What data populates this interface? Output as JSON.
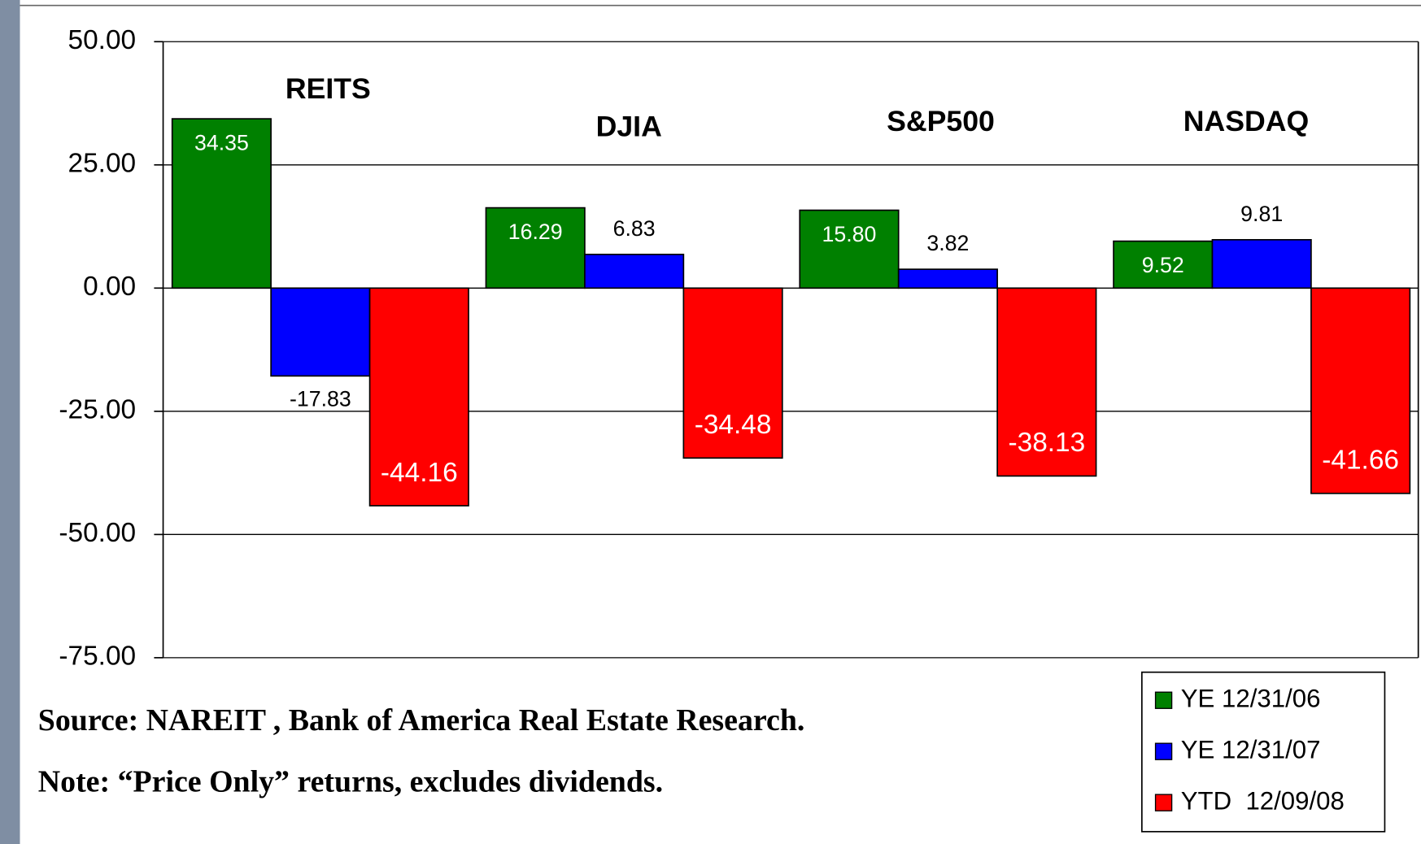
{
  "chart_data": {
    "type": "bar",
    "categories": [
      "REITS",
      "DJIA",
      "S&P500",
      "NASDAQ"
    ],
    "series": [
      {
        "name": "YE 12/31/06",
        "color": "#008000",
        "values": [
          34.35,
          16.29,
          15.8,
          9.52
        ],
        "value_labels": [
          "34.35",
          "16.29",
          "15.80",
          "9.52"
        ]
      },
      {
        "name": "YE 12/31/07",
        "color": "#0000ff",
        "values": [
          -17.83,
          6.83,
          3.82,
          9.81
        ],
        "value_labels": [
          "-17.83",
          "6.83",
          "3.82",
          "9.81"
        ]
      },
      {
        "name": "YTD  12/09/08",
        "color": "#ff0000",
        "values": [
          -44.16,
          -34.48,
          -38.13,
          -41.66
        ],
        "value_labels": [
          "-44.16",
          "-34.48",
          "-38.13",
          "-41.66"
        ]
      }
    ],
    "ylim": [
      -75,
      50
    ],
    "yticks": [
      {
        "value": -75,
        "label": "-75.00"
      },
      {
        "value": -50,
        "label": "-50.00"
      },
      {
        "value": -25,
        "label": "-25.00"
      },
      {
        "value": 0,
        "label": "0.00"
      },
      {
        "value": 25,
        "label": "25.00"
      },
      {
        "value": 50,
        "label": "50.00"
      }
    ],
    "grid": true,
    "legend": "bottom-right",
    "notes": [
      "Source: NAREIT , Bank of America Real Estate Research.",
      "Note: “Price Only” returns, excludes dividends."
    ]
  }
}
